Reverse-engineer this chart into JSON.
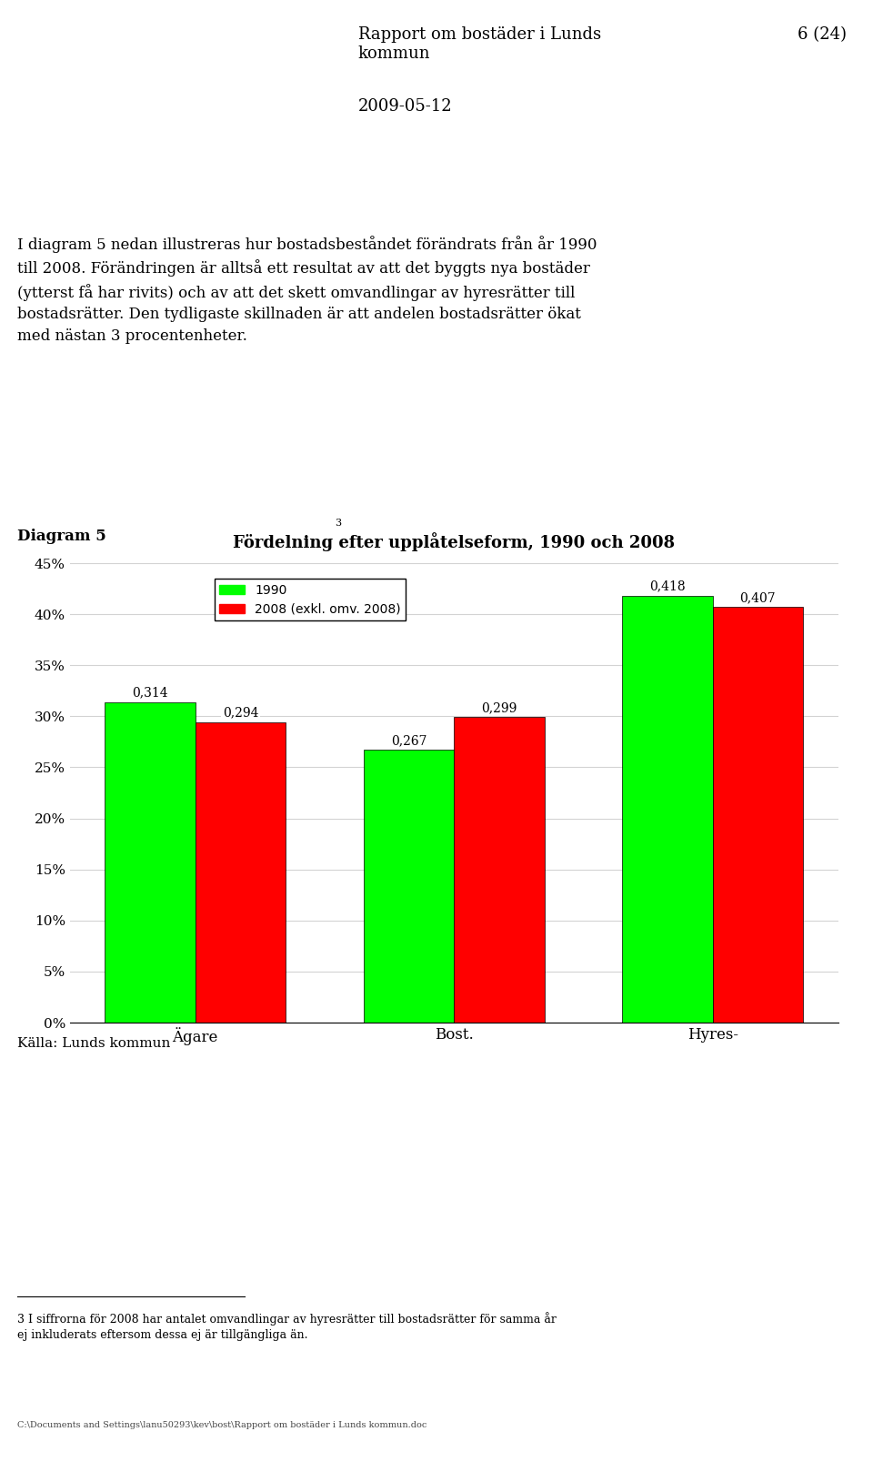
{
  "title": "Fördelning efter upplåtelseform, 1990 och 2008",
  "categories": [
    "Ägare",
    "Bost.",
    "Hyres-"
  ],
  "values_1990": [
    0.314,
    0.267,
    0.418
  ],
  "values_2008": [
    0.294,
    0.299,
    0.407
  ],
  "color_1990": "#00FF00",
  "color_2008": "#FF0000",
  "legend_1990": "1990",
  "legend_2008": "2008 (exkl. omv. 2008)",
  "ylim": [
    0,
    0.45
  ],
  "yticks": [
    0.0,
    0.05,
    0.1,
    0.15,
    0.2,
    0.25,
    0.3,
    0.35,
    0.4,
    0.45
  ],
  "ytick_labels": [
    "0%",
    "5%",
    "10%",
    "15%",
    "20%",
    "25%",
    "30%",
    "35%",
    "40%",
    "45%"
  ],
  "header_title": "Rapport om bostäder i Lunds\nkommun",
  "header_page": "6 (24)",
  "header_date": "2009-05-12",
  "body_text1": "I diagram 5 nedan illustreras hur bostadsbeståndet förändrats från år 1990\ntill 2008. Förändringen är alltså ett resultat av att det byggts nya bostäder\n(ytterst få har rivits) och av att det skett omvandlingar av hyresrätter till\nbostadsrätter. Den tydligaste skillnaden är att andelen bostadsrätter ökat\nmed nästan 3 procentenheter.",
  "superscript": "3",
  "diagram_label": "Diagram 5",
  "source_label": "Källa: Lunds kommun",
  "footnote_line": "___________________________",
  "footnote_text": "3 I siffrorna för 2008 har antalet omvandlingar av hyresrätter till bostadsrätter för samma år\nej inkluderats eftersom dessa ej är tillgängliga än.",
  "footer_path": "C:\\Documents and Settings\\lanu50293\\kev\\bost\\Rapport om bostäder i Lunds kommun.doc",
  "bar_width": 0.35
}
